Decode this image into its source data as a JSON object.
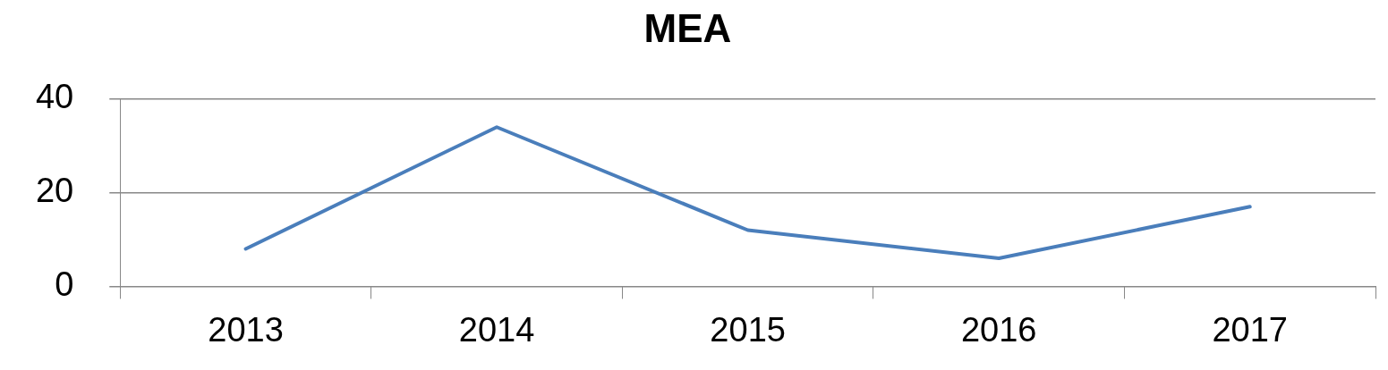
{
  "chart_data": {
    "type": "line",
    "title": "MEA",
    "categories": [
      "2013",
      "2014",
      "2015",
      "2016",
      "2017"
    ],
    "series": [
      {
        "color": "#4a7ebb",
        "values": [
          8,
          34,
          12,
          6,
          17
        ]
      }
    ],
    "ylim": [
      0,
      40
    ],
    "yticks": [
      0,
      20,
      40
    ],
    "grid": "y",
    "legend": false,
    "marker": "none",
    "line_style": "solid"
  }
}
